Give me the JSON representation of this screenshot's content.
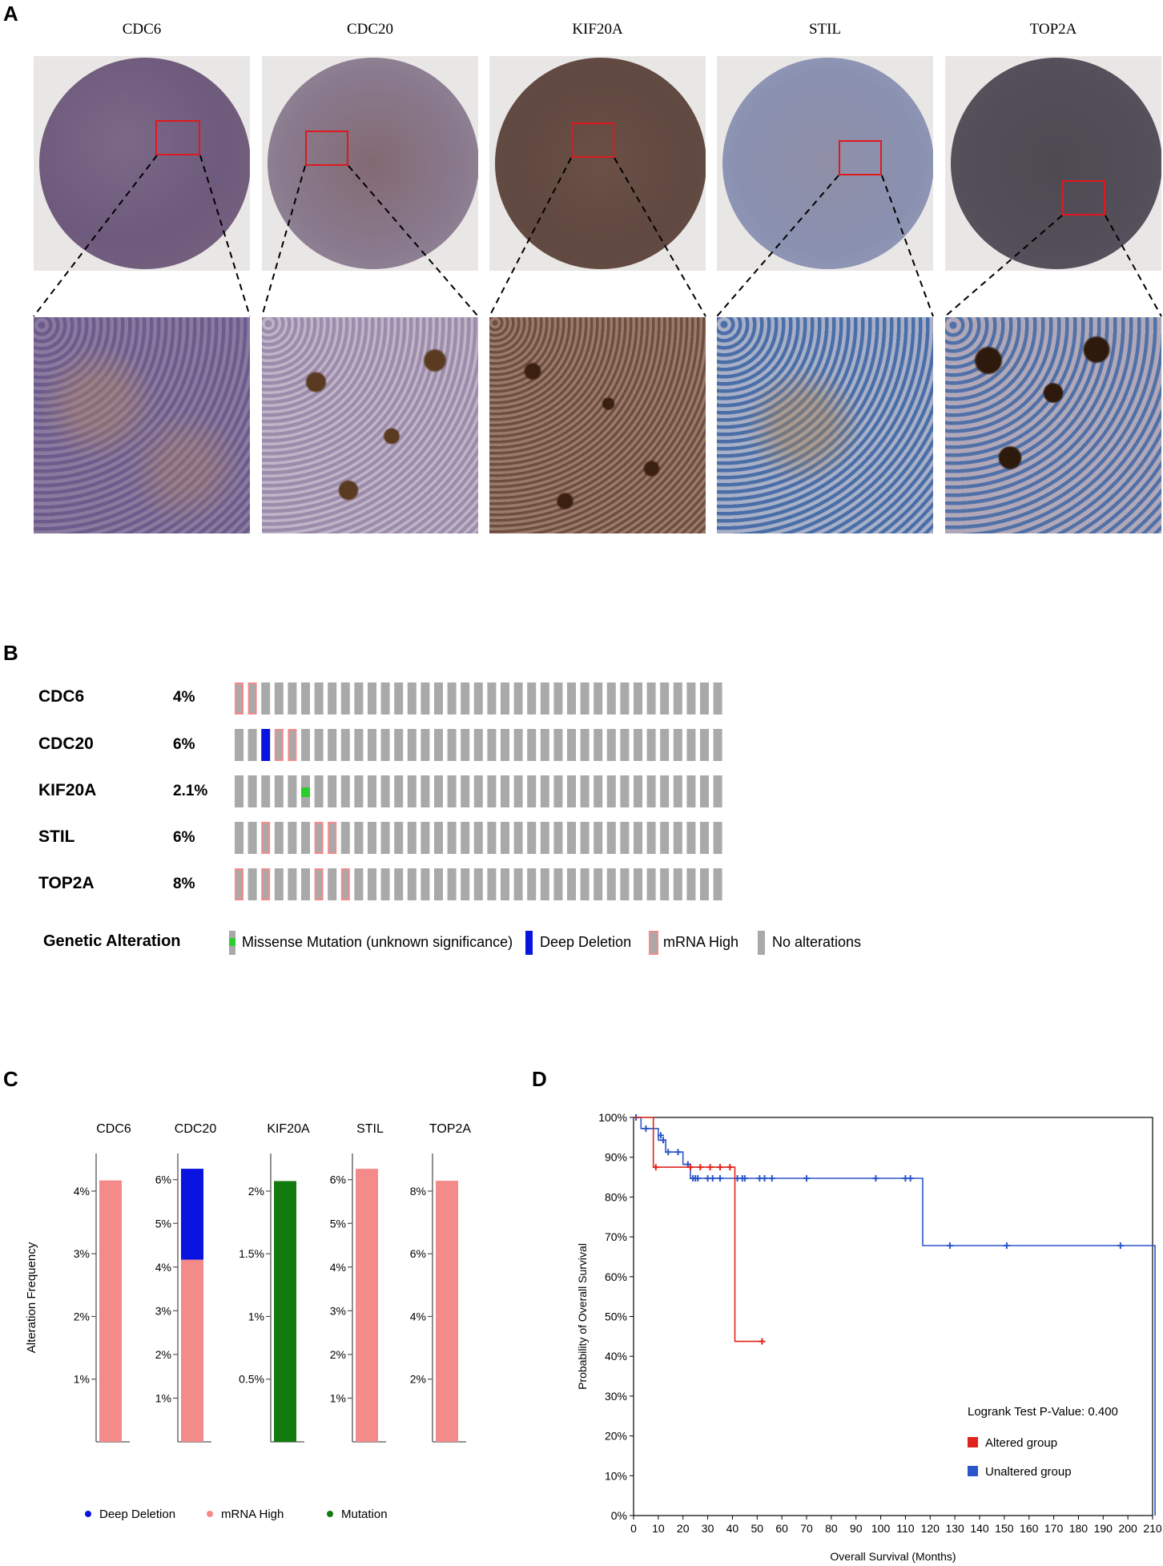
{
  "panels": {
    "a": "A",
    "b": "B",
    "c": "C",
    "d": "D"
  },
  "panel_a": {
    "genes": [
      "CDC6",
      "CDC20",
      "KIF20A",
      "STIL",
      "TOP2A"
    ]
  },
  "panel_b": {
    "genes": [
      {
        "name": "CDC6",
        "pct": "4%"
      },
      {
        "name": "CDC20",
        "pct": "6%"
      },
      {
        "name": "KIF20A",
        "pct": "2.1%"
      },
      {
        "name": "STIL",
        "pct": "6%"
      },
      {
        "name": "TOP2A",
        "pct": "8%"
      }
    ],
    "legend_title": "Genetic Alteration",
    "legend": [
      "Missense Mutation (unknown significance)",
      "Deep Deletion",
      "mRNA High",
      "No alterations"
    ]
  },
  "chart_data": [
    {
      "type": "bar",
      "panel": "C",
      "ylabel": "Alteration Frequency",
      "genes": [
        {
          "name": "CDC6",
          "yticks": [
            "1%",
            "2%",
            "3%",
            "4%"
          ],
          "segments": [
            {
              "type": "mRNA High",
              "value": 4.17
            }
          ]
        },
        {
          "name": "CDC20",
          "yticks": [
            "1%",
            "2%",
            "3%",
            "4%",
            "5%",
            "6%"
          ],
          "segments": [
            {
              "type": "mRNA High",
              "value": 4.17
            },
            {
              "type": "Deep Deletion",
              "value": 2.08
            }
          ]
        },
        {
          "name": "KIF20A",
          "yticks": [
            "0.5%",
            "1%",
            "1.5%",
            "2%"
          ],
          "segments": [
            {
              "type": "Mutation",
              "value": 2.08
            }
          ]
        },
        {
          "name": "STIL",
          "yticks": [
            "1%",
            "2%",
            "3%",
            "4%",
            "5%",
            "6%"
          ],
          "segments": [
            {
              "type": "mRNA High",
              "value": 6.25
            }
          ]
        },
        {
          "name": "TOP2A",
          "yticks": [
            "2%",
            "4%",
            "6%",
            "8%"
          ],
          "segments": [
            {
              "type": "mRNA High",
              "value": 8.33
            }
          ]
        }
      ],
      "legend": [
        {
          "label": "Deep Deletion",
          "color": "#0a14e0"
        },
        {
          "label": "mRNA High",
          "color": "#f58a8a"
        },
        {
          "label": "Mutation",
          "color": "#137a10"
        }
      ]
    },
    {
      "type": "line",
      "panel": "D",
      "xlabel": "Overall Survival (Months)",
      "ylabel": "Probability of Overall Survival",
      "xticks": [
        "0",
        "10",
        "20",
        "30",
        "40",
        "50",
        "60",
        "70",
        "80",
        "90",
        "100",
        "110",
        "120",
        "130",
        "140",
        "150",
        "160",
        "170",
        "180",
        "190",
        "200",
        "210"
      ],
      "yticks": [
        "0%",
        "10%",
        "20%",
        "30%",
        "40%",
        "50%",
        "60%",
        "70%",
        "80%",
        "90%",
        "100%"
      ],
      "xlim": [
        0,
        210
      ],
      "ylim": [
        0,
        100
      ],
      "annotation": "Logrank Test P-Value: 0.400",
      "series": [
        {
          "name": "Altered group",
          "color": "#e0241b",
          "steps": [
            [
              0,
              100
            ],
            [
              8,
              100
            ],
            [
              8,
              87.5
            ],
            [
              41,
              87.5
            ],
            [
              41,
              43.75
            ],
            [
              52,
              43.75
            ]
          ],
          "censored": [
            [
              9,
              87.5
            ],
            [
              23,
              87.5
            ],
            [
              27,
              87.5
            ],
            [
              31,
              87.5
            ],
            [
              35,
              87.5
            ],
            [
              39,
              87.5
            ],
            [
              52,
              43.75
            ]
          ]
        },
        {
          "name": "Unaltered group",
          "color": "#2a56c9",
          "steps": [
            [
              0,
              100
            ],
            [
              3,
              100
            ],
            [
              3,
              97.2
            ],
            [
              10,
              97.2
            ],
            [
              10,
              94.3
            ],
            [
              13,
              94.3
            ],
            [
              13,
              91.3
            ],
            [
              20,
              91.3
            ],
            [
              20,
              88.2
            ],
            [
              23,
              88.2
            ],
            [
              23,
              84.7
            ],
            [
              117,
              84.7
            ],
            [
              117,
              67.8
            ],
            [
              211,
              67.8
            ],
            [
              211,
              0
            ]
          ],
          "censored": [
            [
              1,
              100
            ],
            [
              5,
              97.2
            ],
            [
              11,
              95.5
            ],
            [
              12,
              94.3
            ],
            [
              14,
              91.3
            ],
            [
              18,
              91.3
            ],
            [
              22,
              88.2
            ],
            [
              24,
              84.7
            ],
            [
              25,
              84.7
            ],
            [
              26,
              84.7
            ],
            [
              30,
              84.7
            ],
            [
              32,
              84.7
            ],
            [
              35,
              84.7
            ],
            [
              42,
              84.7
            ],
            [
              44,
              84.7
            ],
            [
              45,
              84.7
            ],
            [
              51,
              84.7
            ],
            [
              53,
              84.7
            ],
            [
              56,
              84.7
            ],
            [
              70,
              84.7
            ],
            [
              98,
              84.7
            ],
            [
              110,
              84.7
            ],
            [
              112,
              84.7
            ],
            [
              128,
              67.8
            ],
            [
              151,
              67.8
            ],
            [
              197,
              67.8
            ]
          ]
        }
      ]
    }
  ]
}
